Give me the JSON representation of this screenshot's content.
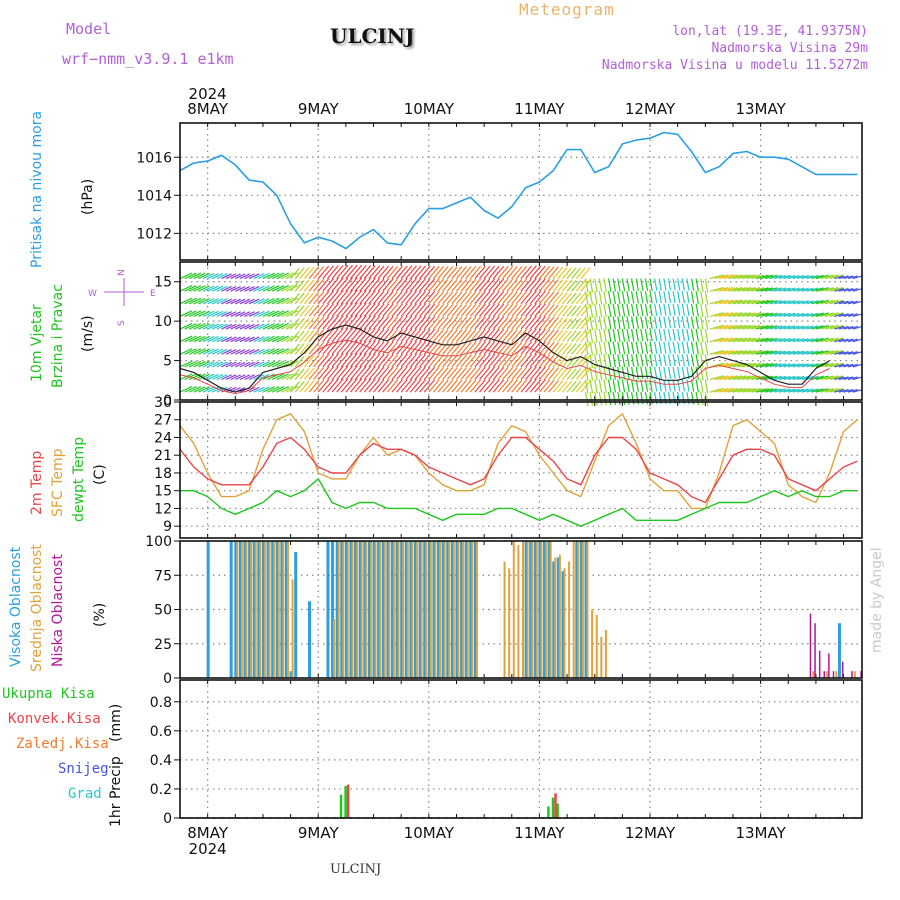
{
  "header": {
    "model_label": "Model",
    "model_name": "wrf−nmm_v3.9.1  e1km",
    "station": "ULCINJ",
    "product": "Meteogram",
    "lonlat": "lon,lat (19.3E, 41.9375N)",
    "elevation": "Nadmorska Visina 29m",
    "model_elevation": "Nadmorska Visina u modelu 11.5272m",
    "credit": "made by Angel",
    "footer_station": "ULCINJ"
  },
  "colors": {
    "purple": "#b15fd6",
    "orange": "#e8b46a",
    "cyan": "#2b9fe0",
    "green": "#21c521",
    "red": "#e8464a",
    "tan": "#e0a23c",
    "magenta": "#b2179a",
    "blue": "#4455dd"
  },
  "time_axis": {
    "year": "2024",
    "days": [
      "8MAY",
      "9MAY",
      "10MAY",
      "11MAY",
      "12MAY",
      "13MAY"
    ]
  },
  "chart_data": [
    {
      "type": "line",
      "id": "pressure",
      "ylabel": "Pritisak na nivou mora",
      "units": "(hPa)",
      "ylim": [
        1010.6,
        1017.8
      ],
      "yticks": [
        "1012",
        "1014",
        "1016"
      ],
      "grid": true,
      "series": [
        {
          "name": "Pritisak na nivou mora",
          "x": [
            0,
            3,
            6,
            9,
            12,
            15,
            18,
            21,
            24,
            27,
            30,
            33,
            36,
            39,
            42,
            45,
            48,
            51,
            54,
            57,
            60,
            63,
            66,
            69,
            72,
            75,
            78,
            81,
            84,
            87,
            90,
            93,
            96,
            99,
            102,
            105,
            108,
            111,
            114,
            117,
            120,
            123,
            126,
            129,
            132,
            135,
            138,
            141,
            144,
            147
          ],
          "values": [
            1015.3,
            1015.7,
            1015.8,
            1016.1,
            1015.6,
            1014.8,
            1014.7,
            1014.0,
            1012.5,
            1011.5,
            1011.8,
            1011.6,
            1011.2,
            1011.8,
            1012.2,
            1011.5,
            1011.4,
            1012.5,
            1013.3,
            1013.3,
            1013.6,
            1013.9,
            1013.2,
            1012.8,
            1013.4,
            1014.4,
            1014.7,
            1015.3,
            1016.4,
            1016.4,
            1015.2,
            1015.5,
            1016.7,
            1016.9,
            1017.0,
            1017.3,
            1017.2,
            1016.3,
            1015.2,
            1015.5,
            1016.2,
            1016.3,
            1016.0,
            1016.0,
            1015.9,
            1015.5,
            1015.1,
            1015.1,
            1015.1,
            1015.1
          ]
        }
      ]
    },
    {
      "type": "line",
      "id": "wind",
      "ylabel": "10m Vjetar Brzina i Pravac",
      "units": "(m/s)",
      "ylim": [
        0,
        17.5
      ],
      "yticks": [
        "0",
        "5",
        "10",
        "15"
      ],
      "grid": true,
      "compass": {
        "n": "N",
        "w": "W",
        "e": "E",
        "s": "S"
      },
      "series": [
        {
          "name": "brzina",
          "x": [
            0,
            3,
            6,
            9,
            12,
            15,
            18,
            21,
            24,
            27,
            30,
            33,
            36,
            39,
            42,
            45,
            48,
            51,
            54,
            57,
            60,
            63,
            66,
            69,
            72,
            75,
            78,
            81,
            84,
            87,
            90,
            93,
            96,
            99,
            102,
            105,
            108,
            111,
            114,
            117,
            120,
            123,
            126,
            129,
            132,
            135,
            138,
            141
          ],
          "values": [
            4,
            3.5,
            2.5,
            1.5,
            1,
            1.5,
            3.5,
            4,
            4.5,
            6,
            8,
            9,
            9.5,
            9,
            8,
            7.5,
            8.5,
            8,
            7.5,
            7,
            7,
            7.5,
            8,
            7.5,
            7,
            8.5,
            7.5,
            6,
            5,
            5.5,
            4.5,
            4,
            3.5,
            3,
            3,
            2.5,
            2.5,
            3,
            5,
            5.5,
            5,
            4.5,
            3.5,
            2.5,
            2,
            2,
            4,
            5
          ]
        }
      ]
    },
    {
      "type": "line",
      "id": "temperature",
      "ylabel": "2m Temp",
      "units": "(C)",
      "ylim": [
        7,
        30
      ],
      "yticks": [
        "9",
        "12",
        "15",
        "18",
        "21",
        "24",
        "27",
        "30"
      ],
      "grid": true,
      "series": [
        {
          "name": "2m Temp",
          "x": [
            0,
            3,
            6,
            9,
            12,
            15,
            18,
            21,
            24,
            27,
            30,
            33,
            36,
            39,
            42,
            45,
            48,
            51,
            54,
            57,
            60,
            63,
            66,
            69,
            72,
            75,
            78,
            81,
            84,
            87,
            90,
            93,
            96,
            99,
            102,
            105,
            108,
            111,
            114,
            117,
            120,
            123,
            126,
            129,
            132,
            135,
            138,
            141,
            144,
            147
          ],
          "values": [
            22,
            19,
            17,
            16,
            16,
            16,
            19,
            23,
            24,
            22,
            19,
            18,
            18,
            21,
            23,
            22,
            22,
            21,
            19,
            18,
            17,
            16,
            17,
            21,
            24,
            24,
            22,
            20,
            17,
            16,
            21,
            24,
            24,
            22,
            18,
            17,
            16,
            14,
            13,
            17,
            21,
            22,
            22,
            21,
            17,
            16,
            15,
            17,
            19,
            20
          ]
        },
        {
          "name": "SFC Temp",
          "x": [
            0,
            3,
            6,
            9,
            12,
            15,
            18,
            21,
            24,
            27,
            30,
            33,
            36,
            39,
            42,
            45,
            48,
            51,
            54,
            57,
            60,
            63,
            66,
            69,
            72,
            75,
            78,
            81,
            84,
            87,
            90,
            93,
            96,
            99,
            102,
            105,
            108,
            111,
            114,
            117,
            120,
            123,
            126,
            129,
            132,
            135,
            138,
            141,
            144,
            147
          ],
          "values": [
            26,
            23,
            18,
            14,
            14,
            15,
            22,
            27,
            28,
            25,
            18,
            17,
            17,
            21,
            24,
            21,
            22,
            21,
            18,
            16,
            15,
            15,
            16,
            23,
            26,
            25,
            21,
            18,
            15,
            14,
            20,
            26,
            28,
            23,
            17,
            15,
            15,
            12,
            12,
            18,
            26,
            27,
            25,
            23,
            16,
            14,
            13,
            18,
            25,
            27
          ]
        },
        {
          "name": "dewpt Temp",
          "x": [
            0,
            3,
            6,
            9,
            12,
            15,
            18,
            21,
            24,
            27,
            30,
            33,
            36,
            39,
            42,
            45,
            48,
            51,
            54,
            57,
            60,
            63,
            66,
            69,
            72,
            75,
            78,
            81,
            84,
            87,
            90,
            93,
            96,
            99,
            102,
            105,
            108,
            111,
            114,
            117,
            120,
            123,
            126,
            129,
            132,
            135,
            138,
            141,
            144,
            147
          ],
          "values": [
            15,
            15,
            14,
            12,
            11,
            12,
            13,
            15,
            14,
            15,
            17,
            13,
            12,
            13,
            13,
            12,
            12,
            12,
            11,
            10,
            11,
            11,
            11,
            12,
            12,
            11,
            10,
            11,
            10,
            9,
            10,
            11,
            12,
            10,
            10,
            10,
            10,
            11,
            12,
            13,
            13,
            13,
            14,
            15,
            14,
            15,
            14,
            14,
            15,
            15
          ]
        }
      ]
    },
    {
      "type": "bar",
      "id": "clouds",
      "ylabel": "Oblacnost",
      "units": "(%)",
      "ylim": [
        0,
        100
      ],
      "yticks": [
        "0",
        "25",
        "50",
        "75",
        "100"
      ],
      "grid": true,
      "series": [
        {
          "name": "Visoka Oblacnost",
          "x": [
            6,
            11,
            12,
            13,
            14,
            15,
            16,
            17,
            18,
            19,
            20,
            21,
            22,
            23,
            24,
            25,
            28,
            32,
            33,
            34,
            35,
            36,
            37,
            38,
            39,
            40,
            41,
            42,
            43,
            44,
            45,
            46,
            47,
            48,
            49,
            50,
            51,
            52,
            53,
            54,
            55,
            56,
            57,
            58,
            59,
            60,
            61,
            62,
            63,
            64,
            75,
            76,
            77,
            78,
            79,
            80,
            81,
            82,
            83,
            86,
            87,
            88,
            143
          ],
          "values": [
            100,
            100,
            100,
            100,
            100,
            100,
            100,
            100,
            100,
            100,
            100,
            100,
            100,
            100,
            5,
            92,
            56,
            100,
            100,
            100,
            100,
            100,
            100,
            100,
            100,
            100,
            100,
            100,
            100,
            100,
            100,
            100,
            100,
            100,
            100,
            100,
            100,
            100,
            100,
            100,
            100,
            100,
            100,
            100,
            100,
            100,
            100,
            100,
            100,
            100,
            100,
            100,
            100,
            100,
            100,
            100,
            85,
            88,
            78,
            100,
            100,
            100,
            40
          ]
        },
        {
          "name": "Srednja Oblacnost",
          "x": [
            12,
            13,
            14,
            15,
            16,
            17,
            18,
            19,
            20,
            21,
            22,
            23,
            24,
            33,
            34,
            35,
            36,
            37,
            38,
            39,
            40,
            41,
            42,
            43,
            44,
            45,
            46,
            47,
            48,
            49,
            50,
            51,
            52,
            53,
            54,
            55,
            56,
            57,
            58,
            59,
            60,
            61,
            62,
            63,
            64,
            70,
            71,
            72,
            73,
            74,
            75,
            76,
            77,
            78,
            79,
            80,
            81,
            82,
            83,
            84,
            85,
            86,
            87,
            88,
            89,
            90,
            91,
            92,
            137,
            140,
            142,
            146
          ],
          "values": [
            100,
            100,
            100,
            100,
            100,
            100,
            100,
            100,
            100,
            100,
            100,
            100,
            72,
            43,
            100,
            100,
            100,
            100,
            100,
            100,
            100,
            100,
            100,
            100,
            100,
            100,
            100,
            100,
            100,
            100,
            100,
            100,
            100,
            100,
            100,
            100,
            100,
            100,
            100,
            100,
            100,
            100,
            100,
            100,
            100,
            85,
            80,
            100,
            97,
            100,
            100,
            100,
            100,
            100,
            100,
            100,
            88,
            90,
            80,
            85,
            100,
            100,
            100,
            100,
            50,
            46,
            30,
            35,
            5,
            5,
            5,
            5
          ]
        },
        {
          "name": "Niska Oblacnost",
          "x": [
            136,
            137,
            138,
            139,
            140,
            141,
            143,
            145,
            147
          ],
          "values": [
            47,
            40,
            20,
            5,
            18,
            5,
            12,
            5,
            5
          ]
        }
      ]
    },
    {
      "type": "bar",
      "id": "precip",
      "ylabel": "1hr Precip",
      "units": "(mm)",
      "ylim": [
        0,
        0.95
      ],
      "yticks": [
        "0",
        "0.2",
        "0.4",
        "0.6",
        "0.8"
      ],
      "grid": true,
      "series": [
        {
          "name": "Ukupna Kisa",
          "x": [
            35,
            36,
            80,
            81,
            82
          ],
          "values": [
            0.16,
            0.22,
            0.08,
            0.14,
            0.1
          ]
        },
        {
          "name": "Konvek.Kisa",
          "x": [
            36,
            81
          ],
          "values": [
            0.23,
            0.17
          ]
        },
        {
          "name": "Zaledj.Kisa",
          "x": [],
          "values": []
        },
        {
          "name": "Snijeg",
          "x": [],
          "values": []
        },
        {
          "name": "Grad",
          "x": [],
          "values": []
        }
      ]
    }
  ],
  "labels": {
    "pressure_title": "Pritisak na nivou mora",
    "pressure_units": "(hPa)",
    "wind_title_1": "10m Vjetar",
    "wind_title_2": "Brzina i Pravac",
    "wind_units": "(m/s)",
    "temp_2m": "2m Temp",
    "temp_sfc": "SFC Temp",
    "temp_dew": "dewpt Temp",
    "temp_units": "(C)",
    "cloud_high": "Visoka Oblacnost",
    "cloud_mid": "Srednja Oblacnost",
    "cloud_low": "Niska Oblacnost",
    "cloud_units": "(%)",
    "precip_total": "Ukupna Kisa",
    "precip_conv": "Konvek.Kisa",
    "precip_frz": "Zaledj.Kisa",
    "precip_snow": "Snijeg",
    "precip_hail": "Grad",
    "precip_title": "1hr Precip",
    "precip_units": "(mm)"
  }
}
